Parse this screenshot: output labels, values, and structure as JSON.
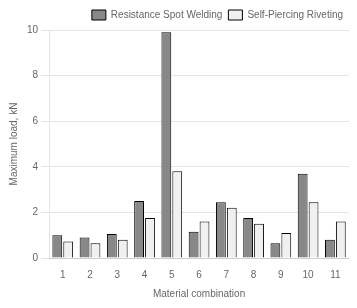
{
  "chart_data": {
    "type": "bar",
    "categories": [
      1,
      2,
      3,
      4,
      5,
      6,
      7,
      8,
      9,
      10,
      11
    ],
    "series": [
      {
        "name": "Resistance Spot Welding",
        "color": "#888888",
        "values": [
          1.0,
          0.9,
          1.05,
          2.5,
          9.9,
          1.15,
          2.45,
          1.75,
          0.65,
          3.7,
          0.8
        ]
      },
      {
        "name": "Self-Piercing Riveting",
        "color": "#f0f0f0",
        "values": [
          0.72,
          0.65,
          0.8,
          1.75,
          3.8,
          1.6,
          2.2,
          1.5,
          1.1,
          2.45,
          1.6
        ]
      }
    ],
    "xlabel": "Material combination",
    "ylabel": "Maximum load, kN",
    "ylim": [
      0,
      10
    ],
    "yticks": [
      0,
      2,
      4,
      6,
      8,
      10
    ],
    "grid": true,
    "legend": "upper right"
  }
}
